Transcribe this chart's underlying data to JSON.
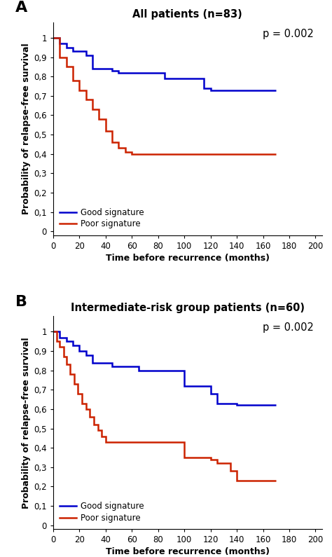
{
  "panel_A": {
    "title": "All patients (n=83)",
    "label": "A",
    "p_value": "p = 0.002",
    "good_x": [
      0,
      5,
      5,
      10,
      10,
      15,
      15,
      25,
      25,
      30,
      30,
      45,
      45,
      50,
      50,
      85,
      85,
      115,
      115,
      120,
      120,
      140,
      140,
      170
    ],
    "good_y": [
      1.0,
      1.0,
      0.97,
      0.97,
      0.95,
      0.95,
      0.93,
      0.93,
      0.91,
      0.91,
      0.84,
      0.84,
      0.83,
      0.83,
      0.82,
      0.82,
      0.79,
      0.79,
      0.74,
      0.74,
      0.73,
      0.73,
      0.73,
      0.73
    ],
    "poor_x": [
      0,
      5,
      5,
      10,
      10,
      15,
      15,
      20,
      20,
      25,
      25,
      30,
      30,
      35,
      35,
      40,
      40,
      45,
      45,
      50,
      50,
      55,
      55,
      60,
      60,
      65,
      65,
      70,
      70,
      170
    ],
    "poor_y": [
      1.0,
      1.0,
      0.9,
      0.9,
      0.85,
      0.85,
      0.78,
      0.78,
      0.73,
      0.73,
      0.68,
      0.68,
      0.63,
      0.63,
      0.58,
      0.58,
      0.52,
      0.52,
      0.46,
      0.46,
      0.43,
      0.43,
      0.41,
      0.41,
      0.4,
      0.4,
      0.4,
      0.4,
      0.4,
      0.4
    ]
  },
  "panel_B": {
    "title": "Intermediate-risk group patients (n=60)",
    "label": "B",
    "p_value": "p = 0.002",
    "good_x": [
      0,
      5,
      5,
      10,
      10,
      15,
      15,
      20,
      20,
      25,
      25,
      30,
      30,
      45,
      45,
      65,
      65,
      75,
      75,
      100,
      100,
      120,
      120,
      125,
      125,
      140,
      140,
      170
    ],
    "good_y": [
      1.0,
      1.0,
      0.97,
      0.97,
      0.95,
      0.95,
      0.93,
      0.93,
      0.9,
      0.9,
      0.88,
      0.88,
      0.84,
      0.84,
      0.82,
      0.82,
      0.8,
      0.8,
      0.8,
      0.8,
      0.72,
      0.72,
      0.68,
      0.68,
      0.63,
      0.63,
      0.62,
      0.62
    ],
    "poor_x": [
      0,
      3,
      3,
      5,
      5,
      8,
      8,
      10,
      10,
      13,
      13,
      16,
      16,
      19,
      19,
      22,
      22,
      25,
      25,
      28,
      28,
      31,
      31,
      34,
      34,
      37,
      37,
      40,
      40,
      43,
      43,
      46,
      46,
      50,
      50,
      55,
      55,
      65,
      65,
      70,
      70,
      100,
      100,
      120,
      120,
      125,
      125,
      135,
      135,
      140,
      140,
      170
    ],
    "poor_y": [
      1.0,
      1.0,
      0.95,
      0.95,
      0.92,
      0.92,
      0.87,
      0.87,
      0.83,
      0.83,
      0.78,
      0.78,
      0.73,
      0.73,
      0.68,
      0.68,
      0.63,
      0.63,
      0.6,
      0.6,
      0.56,
      0.56,
      0.52,
      0.52,
      0.49,
      0.49,
      0.46,
      0.46,
      0.43,
      0.43,
      0.43,
      0.43,
      0.43,
      0.43,
      0.43,
      0.43,
      0.43,
      0.43,
      0.43,
      0.43,
      0.43,
      0.43,
      0.35,
      0.35,
      0.34,
      0.34,
      0.32,
      0.32,
      0.28,
      0.28,
      0.23,
      0.23
    ]
  },
  "good_color": "#0000cc",
  "poor_color": "#cc2200",
  "line_width": 1.8,
  "xlabel": "Time before recurrence (months)",
  "ylabel": "Probability of relapse-free survival",
  "yticks": [
    0,
    0.1,
    0.2,
    0.3,
    0.4,
    0.5,
    0.6,
    0.7,
    0.8,
    0.9,
    1.0
  ],
  "ytick_labels": [
    "0",
    "0,1",
    "0,2",
    "0,3",
    "0,4",
    "0,5",
    "0,6",
    "0,7",
    "0,8",
    "0,9",
    "1"
  ],
  "xticks": [
    0,
    20,
    40,
    60,
    80,
    100,
    120,
    140,
    160,
    180,
    200
  ],
  "xlim": [
    0,
    205
  ],
  "ylim": [
    -0.02,
    1.08
  ],
  "legend_good": "Good signature",
  "legend_poor": "Poor signature",
  "bg_color": "#ffffff",
  "label_fontsize": 16,
  "title_fontsize": 10.5,
  "tick_fontsize": 8.5,
  "axis_label_fontsize": 9,
  "legend_fontsize": 8.5,
  "pval_fontsize": 10.5
}
